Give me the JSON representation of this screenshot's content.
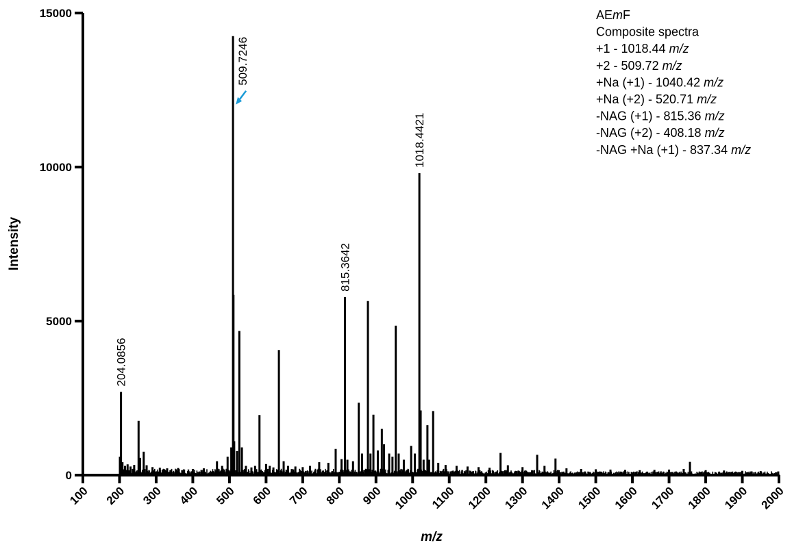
{
  "chart_data": {
    "type": "bar",
    "xlabel": "m/z",
    "ylabel": "Intensity",
    "xlim": [
      100,
      2000
    ],
    "ylim": [
      0,
      15000
    ],
    "x_ticks": [
      "100",
      "200",
      "300",
      "400",
      "500",
      "600",
      "700",
      "800",
      "900",
      "1000",
      "1100",
      "1200",
      "1300",
      "1400",
      "1500",
      "1600",
      "1700",
      "1800",
      "1900",
      "2000"
    ],
    "y_ticks": [
      "0",
      "5000",
      "10000",
      "15000"
    ],
    "grid": false,
    "legend": [
      {
        "parts": [
          {
            "t": "AE",
            "i": false
          },
          {
            "t": "m",
            "i": true
          },
          {
            "t": "F",
            "i": false
          }
        ]
      },
      {
        "parts": [
          {
            "t": "Composite spectra",
            "i": false
          }
        ]
      },
      {
        "parts": [
          {
            "t": "+1 - 1018.44 ",
            "i": false
          },
          {
            "t": "m/z",
            "i": true
          }
        ]
      },
      {
        "parts": [
          {
            "t": "+2 - 509.72 ",
            "i": false
          },
          {
            "t": "m/z",
            "i": true
          }
        ]
      },
      {
        "parts": [
          {
            "t": "+Na (+1) - 1040.42 ",
            "i": false
          },
          {
            "t": "m/z",
            "i": true
          }
        ]
      },
      {
        "parts": [
          {
            "t": "+Na (+2) - 520.71 ",
            "i": false
          },
          {
            "t": "m/z",
            "i": true
          }
        ]
      },
      {
        "parts": [
          {
            "t": "-NAG (+1) - 815.36 ",
            "i": false
          },
          {
            "t": "m/z",
            "i": true
          }
        ]
      },
      {
        "parts": [
          {
            "t": "-NAG (+2) - 408.18 ",
            "i": false
          },
          {
            "t": "m/z",
            "i": true
          }
        ]
      },
      {
        "parts": [
          {
            "t": "-NAG +Na (+1) - 837.34 ",
            "i": false
          },
          {
            "t": "m/z",
            "i": true
          }
        ]
      }
    ],
    "legend_position": "top-right",
    "peak_labels": [
      {
        "text": "204.0856",
        "x": 204.0856,
        "y": 2700
      },
      {
        "text": "509.7246",
        "x": 509.7246,
        "y": 14250,
        "arrow": true
      },
      {
        "text": "815.3642",
        "x": 815.3642,
        "y": 5780
      },
      {
        "text": "1018.4421",
        "x": 1018.4421,
        "y": 9800
      }
    ],
    "arrow_color": "#1a9bd7",
    "peaks": [
      {
        "x": 201,
        "y": 600
      },
      {
        "x": 204,
        "y": 2700
      },
      {
        "x": 208,
        "y": 420
      },
      {
        "x": 215,
        "y": 300
      },
      {
        "x": 222,
        "y": 350
      },
      {
        "x": 230,
        "y": 280
      },
      {
        "x": 240,
        "y": 330
      },
      {
        "x": 252,
        "y": 1760
      },
      {
        "x": 256,
        "y": 560
      },
      {
        "x": 266,
        "y": 760
      },
      {
        "x": 274,
        "y": 320
      },
      {
        "x": 290,
        "y": 260
      },
      {
        "x": 310,
        "y": 240
      },
      {
        "x": 330,
        "y": 220
      },
      {
        "x": 360,
        "y": 230
      },
      {
        "x": 400,
        "y": 200
      },
      {
        "x": 430,
        "y": 220
      },
      {
        "x": 466,
        "y": 450
      },
      {
        "x": 480,
        "y": 300
      },
      {
        "x": 495,
        "y": 600
      },
      {
        "x": 505,
        "y": 900
      },
      {
        "x": 509.72,
        "y": 14250
      },
      {
        "x": 511,
        "y": 5850
      },
      {
        "x": 513,
        "y": 1100
      },
      {
        "x": 520.71,
        "y": 780
      },
      {
        "x": 527,
        "y": 4680
      },
      {
        "x": 534,
        "y": 900
      },
      {
        "x": 545,
        "y": 300
      },
      {
        "x": 560,
        "y": 250
      },
      {
        "x": 570,
        "y": 300
      },
      {
        "x": 582,
        "y": 1950
      },
      {
        "x": 600,
        "y": 360
      },
      {
        "x": 610,
        "y": 300
      },
      {
        "x": 620,
        "y": 250
      },
      {
        "x": 635,
        "y": 4060
      },
      {
        "x": 648,
        "y": 450
      },
      {
        "x": 660,
        "y": 300
      },
      {
        "x": 680,
        "y": 280
      },
      {
        "x": 700,
        "y": 260
      },
      {
        "x": 720,
        "y": 300
      },
      {
        "x": 745,
        "y": 420
      },
      {
        "x": 770,
        "y": 400
      },
      {
        "x": 790,
        "y": 850
      },
      {
        "x": 806,
        "y": 520
      },
      {
        "x": 815.36,
        "y": 5780
      },
      {
        "x": 822,
        "y": 500
      },
      {
        "x": 837.34,
        "y": 450
      },
      {
        "x": 853,
        "y": 2350
      },
      {
        "x": 862,
        "y": 700
      },
      {
        "x": 878,
        "y": 5650
      },
      {
        "x": 885,
        "y": 700
      },
      {
        "x": 893,
        "y": 1960
      },
      {
        "x": 905,
        "y": 800
      },
      {
        "x": 916,
        "y": 1500
      },
      {
        "x": 922,
        "y": 1000
      },
      {
        "x": 936,
        "y": 700
      },
      {
        "x": 945,
        "y": 600
      },
      {
        "x": 954,
        "y": 4850
      },
      {
        "x": 962,
        "y": 700
      },
      {
        "x": 976,
        "y": 500
      },
      {
        "x": 996,
        "y": 950
      },
      {
        "x": 1006,
        "y": 700
      },
      {
        "x": 1018.44,
        "y": 9800
      },
      {
        "x": 1022,
        "y": 2100
      },
      {
        "x": 1030,
        "y": 500
      },
      {
        "x": 1040.42,
        "y": 1620
      },
      {
        "x": 1045,
        "y": 500
      },
      {
        "x": 1056,
        "y": 2080
      },
      {
        "x": 1070,
        "y": 400
      },
      {
        "x": 1090,
        "y": 330
      },
      {
        "x": 1120,
        "y": 300
      },
      {
        "x": 1150,
        "y": 280
      },
      {
        "x": 1180,
        "y": 260
      },
      {
        "x": 1210,
        "y": 240
      },
      {
        "x": 1240,
        "y": 720
      },
      {
        "x": 1260,
        "y": 320
      },
      {
        "x": 1300,
        "y": 260
      },
      {
        "x": 1340,
        "y": 660
      },
      {
        "x": 1360,
        "y": 300
      },
      {
        "x": 1390,
        "y": 540
      },
      {
        "x": 1420,
        "y": 220
      },
      {
        "x": 1460,
        "y": 200
      },
      {
        "x": 1500,
        "y": 190
      },
      {
        "x": 1540,
        "y": 180
      },
      {
        "x": 1580,
        "y": 170
      },
      {
        "x": 1620,
        "y": 160
      },
      {
        "x": 1660,
        "y": 170
      },
      {
        "x": 1700,
        "y": 180
      },
      {
        "x": 1740,
        "y": 200
      },
      {
        "x": 1757,
        "y": 430
      },
      {
        "x": 1800,
        "y": 160
      },
      {
        "x": 1850,
        "y": 150
      },
      {
        "x": 1900,
        "y": 140
      },
      {
        "x": 1950,
        "y": 130
      },
      {
        "x": 1998,
        "y": 120
      }
    ],
    "noise_level": 140
  }
}
